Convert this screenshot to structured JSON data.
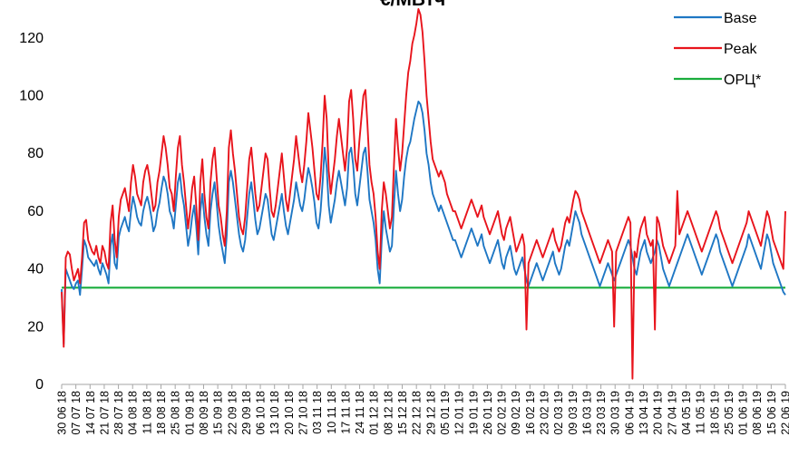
{
  "chart_data": {
    "type": "line",
    "title": "€/МВтч",
    "xlabel": "",
    "ylabel": "",
    "ylim": [
      0,
      130
    ],
    "y_ticks": [
      0,
      20,
      40,
      60,
      80,
      100,
      120
    ],
    "grid": false,
    "legend_position": "top-right",
    "x_tick_labels": [
      "30 06 18",
      "07 07 18",
      "14 07 18",
      "21 07 18",
      "28 07 18",
      "04 08 18",
      "11 08 18",
      "18 08 18",
      "25 08 18",
      "01 09 18",
      "08 09 18",
      "15 09 18",
      "22 09 18",
      "29 09 18",
      "06 10 18",
      "13 10 18",
      "20 10 18",
      "27 10 18",
      "03 11 18",
      "10 11 18",
      "17 11 18",
      "24 11 18",
      "01 12 18",
      "08 12 18",
      "15 12 18",
      "22 12 18",
      "29 12 18",
      "05 01 19",
      "12 01 19",
      "19 01 19",
      "26 01 19",
      "02 02 19",
      "09 02 19",
      "16 02 19",
      "23 02 19",
      "02 03 19",
      "09 03 19",
      "16 03 19",
      "23 03 19",
      "30 03 19",
      "06 04 19",
      "13 04 19",
      "20 04 19",
      "27 04 19",
      "04 05 19",
      "11 05 19",
      "18 05 19",
      "25 05 19",
      "01 06 19",
      "08 06 19",
      "15 06 19",
      "22 06 19"
    ],
    "series": [
      {
        "name": "Base",
        "color": "#1f77c4",
        "values": [
          33,
          14,
          40,
          38,
          36,
          34,
          33,
          35,
          36,
          31,
          40,
          50,
          48,
          44,
          43,
          42,
          41,
          43,
          40,
          38,
          42,
          40,
          38,
          35,
          48,
          52,
          42,
          40,
          51,
          54,
          56,
          58,
          55,
          53,
          60,
          65,
          62,
          58,
          56,
          55,
          60,
          63,
          65,
          62,
          58,
          53,
          55,
          60,
          63,
          68,
          72,
          70,
          66,
          60,
          58,
          54,
          62,
          70,
          73,
          66,
          62,
          55,
          48,
          52,
          58,
          62,
          55,
          45,
          60,
          66,
          58,
          52,
          48,
          60,
          66,
          70,
          63,
          55,
          50,
          46,
          42,
          52,
          70,
          74,
          70,
          64,
          58,
          52,
          48,
          46,
          50,
          58,
          66,
          70,
          64,
          57,
          52,
          54,
          58,
          62,
          66,
          64,
          58,
          52,
          50,
          54,
          58,
          62,
          66,
          60,
          55,
          52,
          56,
          60,
          64,
          70,
          66,
          62,
          60,
          64,
          70,
          75,
          72,
          68,
          63,
          56,
          54,
          60,
          70,
          82,
          75,
          62,
          56,
          60,
          64,
          70,
          74,
          70,
          66,
          62,
          68,
          80,
          82,
          76,
          66,
          62,
          68,
          74,
          80,
          82,
          74,
          64,
          60,
          56,
          50,
          40,
          35,
          50,
          60,
          54,
          50,
          46,
          48,
          62,
          74,
          66,
          60,
          64,
          72,
          78,
          82,
          84,
          88,
          92,
          95,
          98,
          97,
          94,
          88,
          80,
          76,
          70,
          66,
          64,
          62,
          60,
          62,
          60,
          58,
          56,
          54,
          52,
          50,
          50,
          48,
          46,
          44,
          46,
          48,
          50,
          52,
          54,
          52,
          50,
          48,
          50,
          52,
          48,
          46,
          44,
          42,
          44,
          46,
          48,
          50,
          46,
          42,
          40,
          44,
          46,
          48,
          44,
          40,
          38,
          40,
          42,
          44,
          40,
          36,
          34,
          36,
          38,
          40,
          42,
          40,
          38,
          36,
          38,
          40,
          42,
          44,
          46,
          42,
          40,
          38,
          40,
          44,
          48,
          50,
          48,
          52,
          56,
          60,
          58,
          56,
          52,
          50,
          48,
          46,
          44,
          42,
          40,
          38,
          36,
          34,
          36,
          38,
          40,
          42,
          40,
          38,
          36,
          38,
          40,
          42,
          44,
          46,
          48,
          50,
          48,
          44,
          40,
          38,
          42,
          46,
          48,
          50,
          46,
          44,
          42,
          44,
          46,
          50,
          48,
          44,
          40,
          38,
          36,
          34,
          36,
          38,
          40,
          42,
          44,
          46,
          48,
          50,
          52,
          50,
          48,
          46,
          44,
          42,
          40,
          38,
          40,
          42,
          44,
          46,
          48,
          50,
          52,
          50,
          46,
          44,
          42,
          40,
          38,
          36,
          34,
          36,
          38,
          40,
          42,
          44,
          46,
          48,
          52,
          50,
          48,
          46,
          44,
          42,
          40,
          44,
          48,
          52,
          50,
          46,
          42,
          40,
          38,
          36,
          34,
          32,
          31
        ]
      },
      {
        "name": "Peak",
        "color": "#e8141c",
        "values": [
          32,
          13,
          44,
          46,
          45,
          40,
          36,
          38,
          40,
          35,
          44,
          56,
          57,
          50,
          48,
          46,
          45,
          48,
          44,
          42,
          48,
          46,
          42,
          40,
          56,
          62,
          50,
          44,
          58,
          64,
          66,
          68,
          64,
          60,
          70,
          76,
          72,
          66,
          64,
          62,
          70,
          74,
          76,
          72,
          66,
          60,
          62,
          70,
          74,
          80,
          86,
          82,
          76,
          68,
          66,
          60,
          72,
          82,
          86,
          76,
          70,
          62,
          54,
          60,
          68,
          72,
          62,
          50,
          70,
          78,
          66,
          58,
          54,
          70,
          78,
          82,
          72,
          62,
          58,
          52,
          48,
          60,
          82,
          88,
          80,
          74,
          66,
          58,
          54,
          52,
          58,
          68,
          78,
          82,
          74,
          66,
          60,
          62,
          68,
          74,
          80,
          78,
          68,
          60,
          58,
          62,
          68,
          74,
          80,
          72,
          64,
          60,
          66,
          72,
          78,
          86,
          80,
          74,
          70,
          76,
          84,
          94,
          88,
          82,
          74,
          66,
          64,
          72,
          84,
          100,
          92,
          74,
          66,
          72,
          78,
          86,
          92,
          86,
          80,
          74,
          82,
          98,
          102,
          92,
          78,
          74,
          84,
          92,
          100,
          102,
          90,
          76,
          70,
          66,
          58,
          46,
          40,
          60,
          70,
          66,
          60,
          54,
          58,
          76,
          92,
          82,
          74,
          80,
          90,
          100,
          108,
          112,
          118,
          121,
          125,
          130,
          128,
          122,
          112,
          100,
          92,
          84,
          78,
          76,
          74,
          72,
          74,
          72,
          70,
          66,
          64,
          62,
          60,
          60,
          58,
          56,
          54,
          56,
          58,
          60,
          62,
          64,
          62,
          60,
          58,
          60,
          62,
          58,
          56,
          54,
          52,
          54,
          56,
          58,
          60,
          56,
          52,
          50,
          54,
          56,
          58,
          54,
          50,
          46,
          48,
          50,
          52,
          48,
          19,
          42,
          44,
          46,
          48,
          50,
          48,
          46,
          44,
          46,
          48,
          50,
          52,
          54,
          50,
          48,
          46,
          48,
          52,
          56,
          58,
          56,
          60,
          64,
          67,
          66,
          64,
          60,
          58,
          56,
          54,
          52,
          50,
          48,
          46,
          44,
          42,
          44,
          46,
          48,
          50,
          48,
          46,
          20,
          46,
          48,
          50,
          52,
          54,
          56,
          58,
          56,
          2,
          46,
          44,
          50,
          54,
          56,
          58,
          52,
          50,
          48,
          50,
          19,
          58,
          56,
          52,
          48,
          46,
          44,
          42,
          44,
          46,
          48,
          67,
          52,
          54,
          56,
          58,
          60,
          58,
          56,
          54,
          52,
          50,
          48,
          46,
          48,
          50,
          52,
          54,
          56,
          58,
          60,
          58,
          54,
          52,
          50,
          48,
          46,
          44,
          42,
          44,
          46,
          48,
          50,
          52,
          54,
          56,
          60,
          58,
          56,
          54,
          52,
          50,
          48,
          52,
          56,
          60,
          58,
          54,
          50,
          48,
          46,
          44,
          42,
          40,
          60
        ]
      },
      {
        "name": "ОРЦ*",
        "color": "#1aad3d",
        "values": [
          33.5,
          33.5,
          33.5,
          33.5,
          33.5,
          33.5,
          33.5,
          33.5,
          33.5,
          33.5,
          33.5,
          33.5,
          33.5,
          33.5,
          33.5,
          33.5,
          33.5,
          33.5,
          33.5,
          33.5,
          33.5,
          33.5,
          33.5,
          33.5,
          33.5,
          33.5,
          33.5,
          33.5,
          33.5,
          33.5,
          33.5,
          33.5,
          33.5,
          33.5,
          33.5,
          33.5,
          33.5,
          33.5,
          33.5,
          33.5,
          33.5,
          33.5,
          33.5,
          33.5,
          33.5,
          33.5,
          33.5,
          33.5,
          33.5,
          33.5,
          33.5,
          33.5,
          33.5,
          33.5,
          33.5,
          33.5,
          33.5,
          33.5,
          33.5,
          33.5,
          33.5,
          33.5,
          33.5,
          33.5,
          33.5,
          33.5,
          33.5,
          33.5,
          33.5,
          33.5,
          33.5,
          33.5,
          33.5,
          33.5,
          33.5,
          33.5,
          33.5,
          33.5,
          33.5,
          33.5,
          33.5,
          33.5,
          33.5,
          33.5,
          33.5,
          33.5,
          33.5,
          33.5,
          33.5,
          33.5,
          33.5,
          33.5,
          33.5,
          33.5,
          33.5,
          33.5,
          33.5,
          33.5,
          33.5,
          33.5,
          33.5,
          33.5,
          33.5,
          33.5,
          33.5,
          33.5,
          33.5,
          33.5,
          33.5,
          33.5,
          33.5,
          33.5,
          33.5,
          33.5,
          33.5,
          33.5,
          33.5,
          33.5,
          33.5,
          33.5,
          33.5,
          33.5,
          33.5,
          33.5,
          33.5,
          33.5,
          33.5,
          33.5,
          33.5,
          33.5,
          33.5,
          33.5,
          33.5,
          33.5,
          33.5,
          33.5,
          33.5,
          33.5,
          33.5,
          33.5,
          33.5,
          33.5,
          33.5,
          33.5,
          33.5,
          33.5,
          33.5,
          33.5,
          33.5,
          33.5,
          33.5,
          33.5,
          33.5,
          33.5,
          33.5,
          33.5,
          33.5,
          33.5,
          33.5,
          33.5,
          33.5,
          33.5,
          33.5,
          33.5,
          33.5,
          33.5,
          33.5,
          33.5,
          33.5,
          33.5,
          33.5,
          33.5,
          33.5,
          33.5,
          33.5,
          33.5,
          33.5,
          33.5,
          33.5,
          33.5,
          33.5,
          33.5,
          33.5,
          33.5,
          33.5,
          33.5,
          33.5,
          33.5,
          33.5,
          33.5,
          33.5,
          33.5,
          33.5,
          33.5,
          33.5,
          33.5,
          33.5,
          33.5,
          33.5,
          33.5,
          33.5,
          33.5,
          33.5,
          33.5,
          33.5,
          33.5,
          33.5,
          33.5,
          33.5,
          33.5,
          33.5,
          33.5,
          33.5,
          33.5,
          33.5,
          33.5,
          33.5,
          33.5,
          33.5,
          33.5,
          33.5,
          33.5,
          33.5,
          33.5,
          33.5,
          33.5,
          33.5,
          33.5,
          33.5,
          33.5,
          33.5,
          33.5,
          33.5,
          33.5,
          33.5,
          33.5,
          33.5,
          33.5,
          33.5,
          33.5,
          33.5,
          33.5,
          33.5,
          33.5,
          33.5,
          33.5,
          33.5,
          33.5,
          33.5,
          33.5,
          33.5,
          33.5,
          33.5,
          33.5,
          33.5,
          33.5,
          33.5,
          33.5,
          33.5,
          33.5,
          33.5,
          33.5,
          33.5,
          33.5,
          33.5,
          33.5,
          33.5,
          33.5,
          33.5,
          33.5,
          33.5,
          33.5,
          33.5,
          33.5,
          33.5,
          33.5,
          33.5,
          33.5,
          33.5,
          33.5,
          33.5,
          33.5,
          33.5,
          33.5,
          33.5,
          33.5,
          33.5,
          33.5,
          33.5,
          33.5,
          33.5,
          33.5,
          33.5,
          33.5,
          33.5,
          33.5,
          33.5,
          33.5,
          33.5,
          33.5,
          33.5,
          33.5,
          33.5,
          33.5,
          33.5,
          33.5,
          33.5,
          33.5,
          33.5,
          33.5,
          33.5,
          33.5,
          33.5,
          33.5,
          33.5,
          33.5,
          33.5,
          33.5,
          33.5,
          33.5,
          33.5,
          33.5,
          33.5,
          33.5,
          33.5,
          33.5,
          33.5,
          33.5,
          33.5,
          33.5,
          33.5,
          33.5,
          33.5,
          33.5,
          33.5,
          33.5,
          33.5,
          33.5,
          33.5,
          33.5,
          33.5,
          33.5,
          33.5
        ]
      }
    ]
  }
}
